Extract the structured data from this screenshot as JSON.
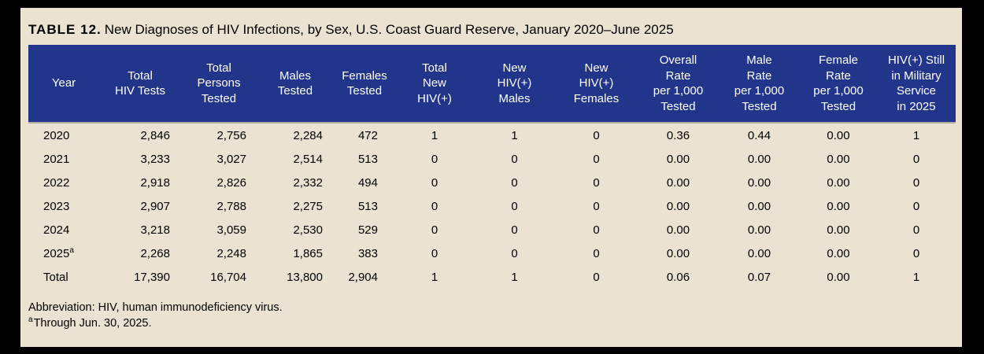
{
  "theme": {
    "navy": "#21368b",
    "card_bg": "#ebe2d2",
    "frame": "#000000",
    "header_text": "#ffffff",
    "body_text": "#000000",
    "separator": "#b5ada0"
  },
  "title": {
    "label": "TABLE 12.",
    "text": "New Diagnoses of HIV Infections, by Sex, U.S. Coast Guard Reserve, January 2020–June 2025"
  },
  "table": {
    "columns": [
      {
        "lines": [
          "Year"
        ]
      },
      {
        "lines": [
          "Total",
          "HIV Tests"
        ]
      },
      {
        "lines": [
          "Total",
          "Persons",
          "Tested"
        ]
      },
      {
        "lines": [
          "Males",
          "Tested"
        ]
      },
      {
        "lines": [
          "Females",
          "Tested"
        ]
      },
      {
        "lines": [
          "Total",
          "New",
          "HIV(+)"
        ]
      },
      {
        "lines": [
          "New",
          "HIV(+)",
          "Males"
        ]
      },
      {
        "lines": [
          "New",
          "HIV(+)",
          "Females"
        ]
      },
      {
        "lines": [
          "Overall",
          "Rate",
          "per 1,000",
          "Tested"
        ]
      },
      {
        "lines": [
          "Male",
          "Rate",
          "per 1,000",
          "Tested"
        ]
      },
      {
        "lines": [
          "Female",
          "Rate",
          "per 1,000",
          "Tested"
        ]
      },
      {
        "lines": [
          "HIV(+) Still",
          "in Military",
          "Service",
          "in 2025"
        ]
      }
    ],
    "rows": [
      {
        "year": "2020",
        "year_sup": "",
        "cells": [
          "2,846",
          "2,756",
          "2,284",
          "472",
          "1",
          "1",
          "0",
          "0.36",
          "0.44",
          "0.00",
          "1"
        ]
      },
      {
        "year": "2021",
        "year_sup": "",
        "cells": [
          "3,233",
          "3,027",
          "2,514",
          "513",
          "0",
          "0",
          "0",
          "0.00",
          "0.00",
          "0.00",
          "0"
        ]
      },
      {
        "year": "2022",
        "year_sup": "",
        "cells": [
          "2,918",
          "2,826",
          "2,332",
          "494",
          "0",
          "0",
          "0",
          "0.00",
          "0.00",
          "0.00",
          "0"
        ]
      },
      {
        "year": "2023",
        "year_sup": "",
        "cells": [
          "2,907",
          "2,788",
          "2,275",
          "513",
          "0",
          "0",
          "0",
          "0.00",
          "0.00",
          "0.00",
          "0"
        ]
      },
      {
        "year": "2024",
        "year_sup": "",
        "cells": [
          "3,218",
          "3,059",
          "2,530",
          "529",
          "0",
          "0",
          "0",
          "0.00",
          "0.00",
          "0.00",
          "0"
        ]
      },
      {
        "year": "2025",
        "year_sup": "a",
        "cells": [
          "2,268",
          "2,248",
          "1,865",
          "383",
          "0",
          "0",
          "0",
          "0.00",
          "0.00",
          "0.00",
          "0"
        ]
      },
      {
        "year": "Total",
        "year_sup": "",
        "cells": [
          "17,390",
          "16,704",
          "13,800",
          "2,904",
          "1",
          "1",
          "0",
          "0.06",
          "0.07",
          "0.00",
          "1"
        ]
      }
    ]
  },
  "footnotes": {
    "abbreviation": "Abbreviation: HIV, human immunodeficiency virus.",
    "a_sup": "a",
    "a_text": "Through Jun. 30, 2025."
  }
}
